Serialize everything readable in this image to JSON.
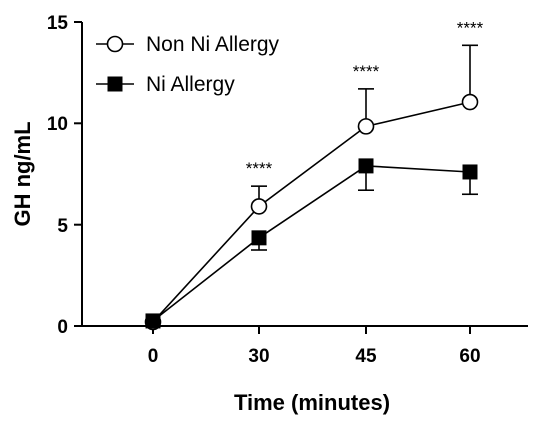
{
  "chart_data": {
    "type": "line",
    "xlabel": "Time (minutes)",
    "ylabel": "GH ng/mL",
    "categories": [
      "0",
      "30",
      "45",
      "60"
    ],
    "ylim": [
      0,
      15
    ],
    "yticks": [
      "0",
      "5",
      "10",
      "15"
    ],
    "legend_position": "top-left",
    "grid": false,
    "series": [
      {
        "name": "Non Ni Allergy",
        "marker": "open-circle",
        "color": "#000000",
        "values": [
          0.2,
          5.9,
          9.85,
          11.05
        ],
        "error_upper": [
          0,
          1.0,
          1.85,
          2.8
        ],
        "error_lower": [
          0,
          0,
          0,
          0
        ]
      },
      {
        "name": "Ni Allergy",
        "marker": "filled-square",
        "color": "#000000",
        "values": [
          0.25,
          4.35,
          7.9,
          7.6
        ],
        "error_upper": [
          0,
          0,
          0,
          0
        ],
        "error_lower": [
          0,
          0.6,
          1.2,
          1.1
        ]
      }
    ],
    "annotations": [
      "",
      "****",
      "****",
      "****"
    ]
  }
}
